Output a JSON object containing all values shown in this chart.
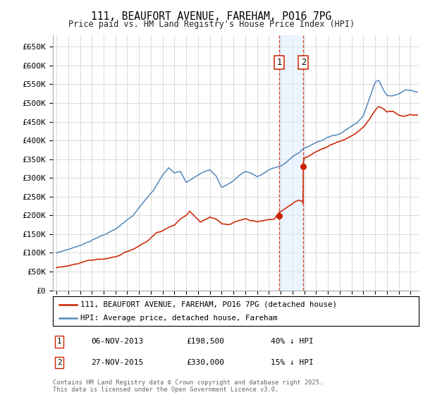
{
  "title": "111, BEAUFORT AVENUE, FAREHAM, PO16 7PG",
  "subtitle": "Price paid vs. HM Land Registry's House Price Index (HPI)",
  "ylim": [
    0,
    680000
  ],
  "yticks": [
    0,
    50000,
    100000,
    150000,
    200000,
    250000,
    300000,
    350000,
    400000,
    450000,
    500000,
    550000,
    600000,
    650000
  ],
  "ytick_labels": [
    "£0",
    "£50K",
    "£100K",
    "£150K",
    "£200K",
    "£250K",
    "£300K",
    "£350K",
    "£400K",
    "£450K",
    "£500K",
    "£550K",
    "£600K",
    "£650K"
  ],
  "hpi_color": "#5588bb",
  "price_color": "#cc2200",
  "sale1_date": 2013.87,
  "sale1_price": 198500,
  "sale2_date": 2015.92,
  "sale2_price": 330000,
  "sale1_label": "06-NOV-2013",
  "sale1_amount": "£198,500",
  "sale1_hpi_diff": "40% ↓ HPI",
  "sale2_label": "27-NOV-2015",
  "sale2_amount": "£330,000",
  "sale2_hpi_diff": "15% ↓ HPI",
  "legend_line1": "111, BEAUFORT AVENUE, FAREHAM, PO16 7PG (detached house)",
  "legend_line2": "HPI: Average price, detached house, Fareham",
  "footer": "Contains HM Land Registry data © Crown copyright and database right 2025.\nThis data is licensed under the Open Government Licence v3.0.",
  "bg_color": "#ffffff",
  "grid_color": "#cccccc",
  "shade_color": "#ddeeff",
  "xlim_left": 1994.7,
  "xlim_right": 2025.7
}
